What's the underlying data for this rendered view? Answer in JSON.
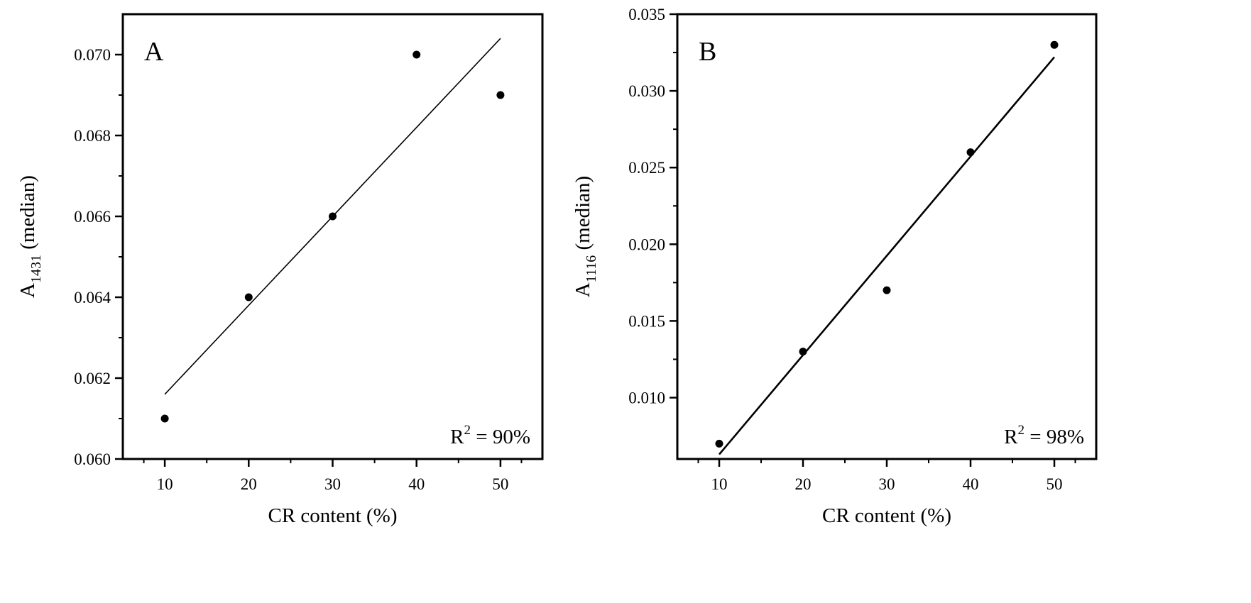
{
  "chart_data": [
    {
      "type": "scatter",
      "panel_label": "A",
      "x": [
        10,
        20,
        30,
        40,
        50
      ],
      "y": [
        0.061,
        0.064,
        0.066,
        0.07,
        0.069
      ],
      "fit_line": {
        "x": [
          10,
          50
        ],
        "y": [
          0.0616,
          0.0704
        ]
      },
      "xlabel": "CR content (%)",
      "ylabel_main": "A",
      "ylabel_sub": "1431",
      "ylabel_rest": " (median)",
      "xlim": [
        5,
        55
      ],
      "ylim": [
        0.06,
        0.071
      ],
      "xticks": [
        10,
        20,
        30,
        40,
        50
      ],
      "xtick_labels": [
        "10",
        "20",
        "30",
        "40",
        "50"
      ],
      "yticks": [
        0.06,
        0.062,
        0.064,
        0.066,
        0.068,
        0.07
      ],
      "ytick_labels": [
        "0.060",
        "0.062",
        "0.064",
        "0.066",
        "0.068",
        "0.070"
      ],
      "r2": {
        "prefix": "R",
        "sup": "2",
        "rest": " = 90%"
      },
      "grid": false
    },
    {
      "type": "scatter",
      "panel_label": "B",
      "x": [
        10,
        20,
        30,
        40,
        50
      ],
      "y": [
        0.007,
        0.013,
        0.017,
        0.026,
        0.033
      ],
      "fit_line": {
        "x": [
          10,
          50
        ],
        "y": [
          0.0063,
          0.0322
        ]
      },
      "xlabel": "CR content (%)",
      "ylabel_main": "A",
      "ylabel_sub": "1116",
      "ylabel_rest": " (median)",
      "xlim": [
        5,
        55
      ],
      "ylim": [
        0.006,
        0.035
      ],
      "xticks": [
        10,
        20,
        30,
        40,
        50
      ],
      "xtick_labels": [
        "10",
        "20",
        "30",
        "40",
        "50"
      ],
      "yticks": [
        0.01,
        0.015,
        0.02,
        0.025,
        0.03,
        0.035
      ],
      "ytick_labels": [
        "0.010",
        "0.015",
        "0.020",
        "0.025",
        "0.030",
        "0.035"
      ],
      "r2": {
        "prefix": "R",
        "sup": "2",
        "rest": " = 98%"
      },
      "grid": false
    }
  ]
}
